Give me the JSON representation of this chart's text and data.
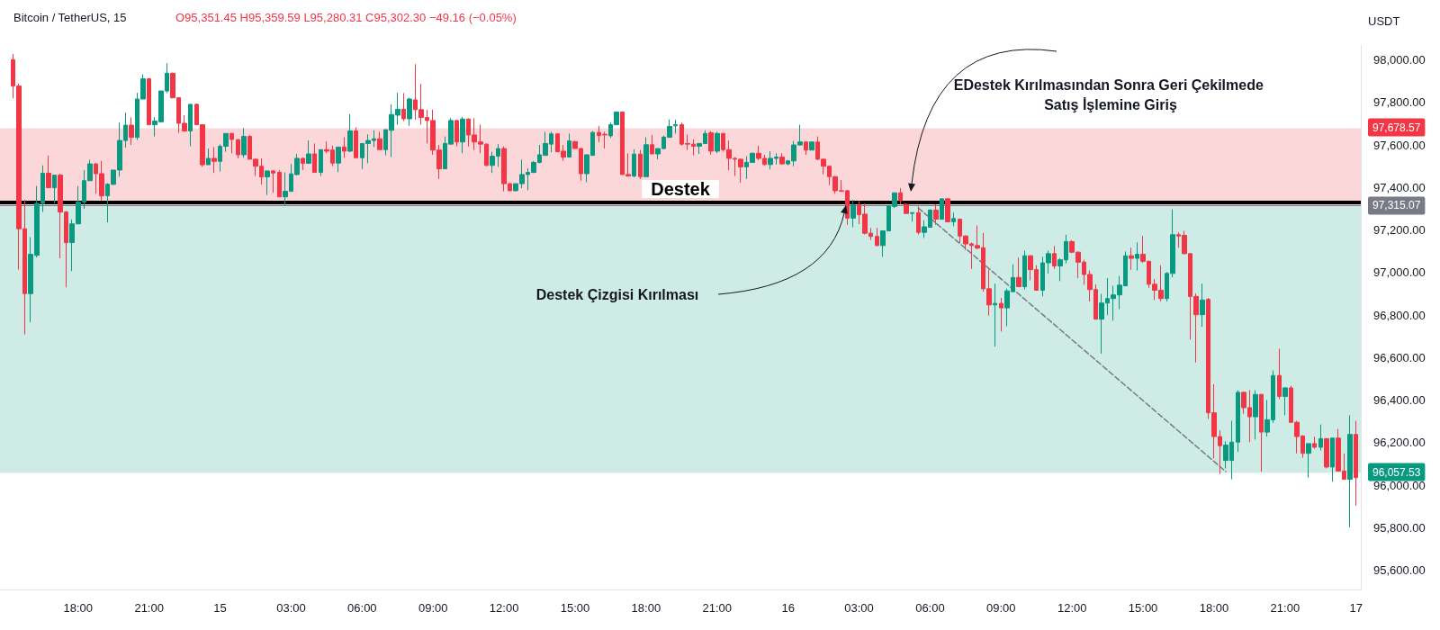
{
  "chart_data": {
    "type": "candlestick",
    "title": "Bitcoin / TetherUS, 15",
    "subtitle": "O95,351.45 H95,359.59 L95,280.31 C95,302.30 −49.16 (−0.05%)",
    "ylabel": "USDT",
    "x": [
      "--02-14T15:15",
      "--02-14T15:30",
      "--02-14T15:45",
      "--02-14T16:00",
      "--02-14T16:15",
      "--02-14T16:30",
      "--02-14T16:45",
      "--02-14T17:00",
      "--02-14T17:15",
      "--02-14T17:30",
      "--02-14T17:45",
      "--02-14T18:00",
      "--02-14T18:15",
      "--02-14T18:30",
      "--02-14T18:45",
      "--02-14T19:00",
      "--02-14T19:15",
      "--02-14T19:30",
      "--02-14T19:45",
      "--02-14T20:00",
      "--02-14T20:15",
      "--02-14T20:30",
      "--02-14T20:45",
      "--02-14T21:00",
      "--02-14T21:15",
      "--02-14T21:30",
      "--02-14T21:45",
      "--02-14T22:00",
      "--02-14T22:15",
      "--02-14T22:30",
      "--02-14T22:45",
      "--02-14T23:00",
      "--02-14T23:15",
      "--02-14T23:30",
      "--02-14T23:45",
      "--02-15T00:00",
      "--02-15T00:15",
      "--02-15T00:30",
      "--02-15T00:45",
      "--02-15T01:00",
      "--02-15T01:15",
      "--02-15T01:30",
      "--02-15T01:45",
      "--02-15T02:00",
      "--02-15T02:15",
      "--02-15T02:30",
      "--02-15T02:45",
      "--02-15T03:00",
      "--02-15T03:15",
      "--02-15T03:30",
      "--02-15T03:45",
      "--02-15T04:00",
      "--02-15T04:15",
      "--02-15T04:30",
      "--02-15T04:45",
      "--02-15T05:00",
      "--02-15T05:15",
      "--02-15T05:30",
      "--02-15T05:45",
      "--02-15T06:00",
      "--02-15T06:15",
      "--02-15T06:30",
      "--02-15T06:45",
      "--02-15T07:00",
      "--02-15T07:15",
      "--02-15T07:30",
      "--02-15T07:45",
      "--02-15T08:00",
      "--02-15T08:15",
      "--02-15T08:30",
      "--02-15T08:45",
      "--02-15T09:00",
      "--02-15T09:15",
      "--02-15T09:30",
      "--02-15T09:45",
      "--02-15T10:00",
      "--02-15T10:15",
      "--02-15T10:30",
      "--02-15T10:45",
      "--02-15T11:00",
      "--02-15T11:15",
      "--02-15T11:30",
      "--02-15T11:45",
      "--02-15T12:00",
      "--02-15T12:15",
      "--02-15T12:30",
      "--02-15T12:45",
      "--02-15T13:00",
      "--02-15T13:15",
      "--02-15T13:30",
      "--02-15T13:45",
      "--02-15T14:00",
      "--02-15T14:15",
      "--02-15T14:30",
      "--02-15T14:45",
      "--02-15T15:00",
      "--02-15T15:15",
      "--02-15T15:30",
      "--02-15T15:45",
      "--02-15T16:00",
      "--02-15T16:15",
      "--02-15T16:30",
      "--02-15T16:45",
      "--02-15T17:00",
      "--02-15T17:15",
      "--02-15T17:30",
      "--02-15T17:45",
      "--02-15T18:00",
      "--02-15T18:15",
      "--02-15T18:30",
      "--02-15T18:45",
      "--02-15T19:00",
      "--02-15T19:15",
      "--02-15T19:30",
      "--02-15T19:45",
      "--02-15T20:00",
      "--02-15T20:15",
      "--02-15T20:30",
      "--02-15T20:45",
      "--02-15T21:00",
      "--02-15T21:15",
      "--02-15T21:30",
      "--02-15T21:45",
      "--02-15T22:00",
      "--02-15T22:15",
      "--02-15T22:30",
      "--02-15T22:45",
      "--02-15T23:00",
      "--02-15T23:15",
      "--02-15T23:30",
      "--02-15T23:45",
      "--02-16T00:00",
      "--02-16T00:15",
      "--02-16T00:30",
      "--02-16T00:45",
      "--02-16T01:00",
      "--02-16T01:15",
      "--02-16T01:30",
      "--02-16T01:45",
      "--02-16T02:00",
      "--02-16T02:15",
      "--02-16T02:30",
      "--02-16T02:45",
      "--02-16T03:00",
      "--02-16T03:15",
      "--02-16T03:30",
      "--02-16T03:45",
      "--02-16T04:00",
      "--02-16T04:15",
      "--02-16T04:30",
      "--02-16T04:45",
      "--02-16T05:00",
      "--02-16T05:15",
      "--02-16T05:30",
      "--02-16T05:45",
      "--02-16T06:00",
      "--02-16T06:15",
      "--02-16T06:30",
      "--02-16T06:45",
      "--02-16T07:00",
      "--02-16T07:15",
      "--02-16T07:30",
      "--02-16T07:45",
      "--02-16T08:00",
      "--02-16T08:15",
      "--02-16T08:30",
      "--02-16T08:45",
      "--02-16T09:00",
      "--02-16T09:15",
      "--02-16T09:30",
      "--02-16T09:45",
      "--02-16T10:00",
      "--02-16T10:15",
      "--02-16T10:30",
      "--02-16T10:45",
      "--02-16T11:00",
      "--02-16T11:15",
      "--02-16T11:30",
      "--02-16T11:45",
      "--02-16T12:00",
      "--02-16T12:15",
      "--02-16T12:30",
      "--02-16T12:45",
      "--02-16T13:00",
      "--02-16T13:15",
      "--02-16T13:30",
      "--02-16T13:45",
      "--02-16T14:00",
      "--02-16T14:15",
      "--02-16T14:30",
      "--02-16T14:45",
      "--02-16T15:00",
      "--02-16T15:15",
      "--02-16T15:30",
      "--02-16T15:45",
      "--02-16T16:00",
      "--02-16T16:15",
      "--02-16T16:30",
      "--02-16T16:45",
      "--02-16T17:00",
      "--02-16T17:15",
      "--02-16T17:30",
      "--02-16T17:45",
      "--02-16T18:00",
      "--02-16T18:15",
      "--02-16T18:30",
      "--02-16T18:45",
      "--02-16T19:00",
      "--02-16T19:15",
      "--02-16T19:30",
      "--02-16T19:45",
      "--02-16T20:00",
      "--02-16T20:15",
      "--02-16T20:30",
      "--02-16T20:45",
      "--02-16T21:00",
      "--02-16T21:15",
      "--02-16T21:30",
      "--02-16T21:45",
      "--02-16T22:00",
      "--02-16T22:15",
      "--02-16T22:30",
      "--02-16T22:45",
      "--02-16T23:00",
      "--02-16T23:15",
      "--02-16T23:30",
      "--02-16T23:45",
      "--02-17T00:00"
    ],
    "ohlc": [
      [
        98001,
        98027,
        97819,
        97877
      ],
      [
        97877,
        97888,
        97014,
        97206
      ],
      [
        97206,
        97342,
        96709,
        96901
      ],
      [
        96901,
        97167,
        96766,
        97086
      ],
      [
        97081,
        97407,
        97071,
        97325
      ],
      [
        97325,
        97504,
        97285,
        97467
      ],
      [
        97467,
        97550,
        97397,
        97399
      ],
      [
        97399,
        97458,
        97325,
        97458
      ],
      [
        97458,
        97465,
        97067,
        97285
      ],
      [
        97285,
        97290,
        96931,
        97141
      ],
      [
        97141,
        97250,
        97007,
        97229
      ],
      [
        97229,
        97407,
        97229,
        97332
      ],
      [
        97332,
        97482,
        97300,
        97432
      ],
      [
        97432,
        97530,
        97432,
        97511
      ],
      [
        97511,
        97515,
        97371,
        97465
      ],
      [
        97465,
        97525,
        97339,
        97361
      ],
      [
        97361,
        97421,
        97236,
        97415
      ],
      [
        97415,
        97482,
        97411,
        97482
      ],
      [
        97482,
        97705,
        97451,
        97621
      ],
      [
        97621,
        97752,
        97587,
        97693
      ],
      [
        97693,
        97730,
        97600,
        97636
      ],
      [
        97636,
        97845,
        97623,
        97816
      ],
      [
        97816,
        97932,
        97816,
        97911
      ],
      [
        97911,
        97915,
        97695,
        97695
      ],
      [
        97695,
        97730,
        97640,
        97712
      ],
      [
        97709,
        97854,
        97709,
        97854
      ],
      [
        97854,
        97984,
        97844,
        97937
      ],
      [
        97937,
        97940,
        97819,
        97822
      ],
      [
        97822,
        97825,
        97657,
        97702
      ],
      [
        97702,
        97740,
        97662,
        97666
      ],
      [
        97666,
        97791,
        97594,
        97791
      ],
      [
        97791,
        97795,
        97695,
        97695
      ],
      [
        97695,
        97698,
        97497,
        97507
      ],
      [
        97507,
        97583,
        97507,
        97537
      ],
      [
        97537,
        97590,
        97468,
        97523
      ],
      [
        97523,
        97603,
        97475,
        97594
      ],
      [
        97594,
        97654,
        97568,
        97654
      ],
      [
        97654,
        97657,
        97561,
        97626
      ],
      [
        97625,
        97628,
        97537,
        97554
      ],
      [
        97554,
        97679,
        97540,
        97640
      ],
      [
        97640,
        97647,
        97533,
        97533
      ],
      [
        97533,
        97536,
        97454,
        97500
      ],
      [
        97500,
        97537,
        97414,
        97450
      ],
      [
        97450,
        97478,
        97365,
        97478
      ],
      [
        97478,
        97482,
        97375,
        97468
      ],
      [
        97471,
        97482,
        97356,
        97356
      ],
      [
        97356,
        97471,
        97315,
        97382
      ],
      [
        97382,
        97511,
        97382,
        97464
      ],
      [
        97461,
        97558,
        97457,
        97537
      ],
      [
        97537,
        97540,
        97482,
        97514
      ],
      [
        97514,
        97621,
        97511,
        97558
      ],
      [
        97558,
        97607,
        97471,
        97471
      ],
      [
        97471,
        97578,
        97454,
        97578
      ],
      [
        97578,
        97617,
        97561,
        97571
      ],
      [
        97576,
        97597,
        97501,
        97515
      ],
      [
        97515,
        97590,
        97472,
        97590
      ],
      [
        97590,
        97636,
        97540,
        97571
      ],
      [
        97571,
        97745,
        97566,
        97666
      ],
      [
        97666,
        97683,
        97540,
        97540
      ],
      [
        97540,
        97607,
        97487,
        97607
      ],
      [
        97607,
        97650,
        97514,
        97621
      ],
      [
        97621,
        97669,
        97590,
        97629
      ],
      [
        97629,
        97662,
        97578,
        97578
      ],
      [
        97578,
        97672,
        97551,
        97672
      ],
      [
        97669,
        97791,
        97543,
        97743
      ],
      [
        97740,
        97845,
        97695,
        97768
      ],
      [
        97768,
        97844,
        97712,
        97723
      ],
      [
        97723,
        97822,
        97690,
        97816
      ],
      [
        97812,
        97980,
        97719,
        97766
      ],
      [
        97766,
        97887,
        97695,
        97729
      ],
      [
        97729,
        97765,
        97607,
        97715
      ],
      [
        97715,
        97766,
        97554,
        97576
      ],
      [
        97576,
        97600,
        97440,
        97488
      ],
      [
        97488,
        97640,
        97488,
        97607
      ],
      [
        97604,
        97726,
        97604,
        97715
      ],
      [
        97715,
        97718,
        97593,
        97614
      ],
      [
        97614,
        97732,
        97561,
        97722
      ],
      [
        97722,
        97725,
        97593,
        97647
      ],
      [
        97647,
        97726,
        97576,
        97614
      ],
      [
        97614,
        97695,
        97561,
        97604
      ],
      [
        97604,
        97607,
        97500,
        97504
      ],
      [
        97504,
        97568,
        97468,
        97547
      ],
      [
        97547,
        97604,
        97497,
        97583
      ],
      [
        97583,
        97593,
        97382,
        97418
      ],
      [
        97418,
        97421,
        97382,
        97385
      ],
      [
        97385,
        97418,
        97382,
        97418
      ],
      [
        97418,
        97531,
        97397,
        97461
      ],
      [
        97461,
        97490,
        97387,
        97471
      ],
      [
        97471,
        97525,
        97468,
        97518
      ],
      [
        97518,
        97600,
        97514,
        97554
      ],
      [
        97551,
        97662,
        97551,
        97607
      ],
      [
        97604,
        97662,
        97566,
        97652
      ],
      [
        97652,
        97655,
        97566,
        97568
      ],
      [
        97571,
        97600,
        97525,
        97543
      ],
      [
        97543,
        97654,
        97543,
        97619
      ],
      [
        97616,
        97619,
        97583,
        97583
      ],
      [
        97583,
        97586,
        97432,
        97465
      ],
      [
        97465,
        97554,
        97425,
        97554
      ],
      [
        97551,
        97665,
        97551,
        97659
      ],
      [
        97659,
        97690,
        97612,
        97644
      ],
      [
        97650,
        97662,
        97583,
        97647
      ],
      [
        97643,
        97705,
        97633,
        97695
      ],
      [
        97695,
        97758,
        97695,
        97755
      ],
      [
        97755,
        97758,
        97461,
        97461
      ],
      [
        97461,
        97561,
        97451,
        97454
      ],
      [
        97454,
        97580,
        97447,
        97557
      ],
      [
        97557,
        97576,
        97440,
        97451
      ],
      [
        97451,
        97636,
        97451,
        97601
      ],
      [
        97601,
        97647,
        97558,
        97558
      ],
      [
        97558,
        97583,
        97533,
        97583
      ],
      [
        97583,
        97644,
        97580,
        97637
      ],
      [
        97636,
        97719,
        97636,
        97687
      ],
      [
        97690,
        97719,
        97654,
        97695
      ],
      [
        97695,
        97705,
        97597,
        97604
      ],
      [
        97607,
        97650,
        97576,
        97604
      ],
      [
        97604,
        97626,
        97551,
        97594
      ],
      [
        97594,
        97607,
        97558,
        97607
      ],
      [
        97607,
        97669,
        97604,
        97654
      ],
      [
        97657,
        97666,
        97554,
        97571
      ],
      [
        97571,
        97662,
        97561,
        97654
      ],
      [
        97654,
        97657,
        97568,
        97578
      ],
      [
        97578,
        97621,
        97482,
        97537
      ],
      [
        97537,
        97543,
        97454,
        97533
      ],
      [
        97533,
        97536,
        97422,
        97497
      ],
      [
        97497,
        97547,
        97440,
        97518
      ],
      [
        97518,
        97564,
        97518,
        97561
      ],
      [
        97561,
        97597,
        97528,
        97537
      ],
      [
        97537,
        97554,
        97504,
        97508
      ],
      [
        97508,
        97571,
        97485,
        97537
      ],
      [
        97537,
        97561,
        97508,
        97543
      ],
      [
        97543,
        97561,
        97507,
        97511
      ],
      [
        97511,
        97530,
        97504,
        97525
      ],
      [
        97525,
        97619,
        97500,
        97600
      ],
      [
        97600,
        97695,
        97597,
        97614
      ],
      [
        97614,
        97617,
        97554,
        97576
      ],
      [
        97576,
        97614,
        97576,
        97614
      ],
      [
        97614,
        97640,
        97528,
        97533
      ],
      [
        97533,
        97536,
        97461,
        97500
      ],
      [
        97500,
        97503,
        97411,
        97451
      ],
      [
        97451,
        97454,
        97371,
        97385
      ],
      [
        97385,
        97435,
        97382,
        97382
      ],
      [
        97385,
        97388,
        97225,
        97256
      ],
      [
        97256,
        97342,
        97213,
        97318
      ],
      [
        97318,
        97336,
        97228,
        97272
      ],
      [
        97275,
        97325,
        97179,
        97185
      ],
      [
        97185,
        97210,
        97153,
        97170
      ],
      [
        97170,
        97210,
        97124,
        97127
      ],
      [
        97127,
        97196,
        97074,
        97196
      ],
      [
        97196,
        97315,
        97196,
        97315
      ],
      [
        97311,
        97375,
        97304,
        97375
      ],
      [
        97375,
        97397,
        97321,
        97339
      ],
      [
        97321,
        97324,
        97275,
        97278
      ],
      [
        97278,
        97282,
        97239,
        97282
      ],
      [
        97282,
        97311,
        97179,
        97189
      ],
      [
        97189,
        97246,
        97163,
        97215
      ],
      [
        97213,
        97297,
        97211,
        97294
      ],
      [
        97294,
        97321,
        97225,
        97251
      ],
      [
        97251,
        97347,
        97251,
        97347
      ],
      [
        97347,
        97350,
        97239,
        97239
      ],
      [
        97239,
        97282,
        97218,
        97254
      ],
      [
        97251,
        97254,
        97139,
        97172
      ],
      [
        97172,
        97175,
        97106,
        97135
      ],
      [
        97135,
        97142,
        97017,
        97127
      ],
      [
        97127,
        97222,
        97110,
        97115
      ],
      [
        97117,
        97186,
        96910,
        96924
      ],
      [
        96924,
        97014,
        96798,
        96848
      ],
      [
        96848,
        96948,
        96652,
        96855
      ],
      [
        96855,
        96881,
        96723,
        96834
      ],
      [
        96834,
        96924,
        96748,
        96914
      ],
      [
        96910,
        97039,
        96910,
        96977
      ],
      [
        96977,
        97070,
        96931,
        96934
      ],
      [
        96934,
        97103,
        96921,
        97079
      ],
      [
        97079,
        97082,
        96963,
        97014
      ],
      [
        97014,
        97034,
        96917,
        96917
      ],
      [
        96917,
        97074,
        96888,
        97046
      ],
      [
        97046,
        97103,
        96996,
        97089
      ],
      [
        97089,
        97125,
        97017,
        97031
      ],
      [
        97031,
        97067,
        96960,
        97060
      ],
      [
        97060,
        97178,
        97043,
        97146
      ],
      [
        97146,
        97153,
        97092,
        97096
      ],
      [
        97096,
        97099,
        96974,
        97049
      ],
      [
        97049,
        97060,
        96943,
        96991
      ],
      [
        96991,
        97010,
        96864,
        96920
      ],
      [
        96920,
        96945,
        96781,
        96781
      ],
      [
        96781,
        96900,
        96619,
        96857
      ],
      [
        96857,
        96974,
        96799,
        96878
      ],
      [
        96878,
        96938,
        96774,
        96895
      ],
      [
        96895,
        96984,
        96828,
        96941
      ],
      [
        96938,
        97099,
        96935,
        97079
      ],
      [
        97079,
        97117,
        97013,
        97067
      ],
      [
        97067,
        97142,
        97010,
        97086
      ],
      [
        97086,
        97172,
        97046,
        97053
      ],
      [
        97053,
        97056,
        96928,
        96945
      ],
      [
        96945,
        96970,
        96871,
        96917
      ],
      [
        96917,
        97034,
        96864,
        96878
      ],
      [
        96878,
        97003,
        96864,
        96996
      ],
      [
        96996,
        97297,
        96978,
        97178
      ],
      [
        97178,
        97189,
        97117,
        97172
      ],
      [
        97175,
        97196,
        97086,
        97089
      ],
      [
        97089,
        97092,
        96685,
        96888
      ],
      [
        96888,
        96902,
        96577,
        96802
      ],
      [
        96802,
        96948,
        96745,
        96871
      ],
      [
        96874,
        96881,
        96312,
        96341
      ],
      [
        96341,
        96475,
        96126,
        96229
      ],
      [
        96229,
        96258,
        96054,
        96186
      ],
      [
        96117,
        96207,
        96079,
        96189
      ],
      [
        96117,
        96303,
        96028,
        96203
      ],
      [
        96203,
        96447,
        96157,
        96437
      ],
      [
        96437,
        96440,
        96336,
        96365
      ],
      [
        96365,
        96447,
        96203,
        96322
      ],
      [
        96322,
        96447,
        96215,
        96427
      ],
      [
        96427,
        96430,
        96064,
        96250
      ],
      [
        96250,
        96401,
        96229,
        96308
      ],
      [
        96308,
        96540,
        96293,
        96516
      ],
      [
        96516,
        96642,
        96405,
        96418
      ],
      [
        96418,
        96461,
        96329,
        96458
      ],
      [
        96458,
        96468,
        96293,
        96296
      ],
      [
        96296,
        96303,
        96150,
        96229
      ],
      [
        96232,
        96235,
        96129,
        96150
      ],
      [
        96150,
        96196,
        96036,
        96196
      ],
      [
        96196,
        96229,
        96172,
        96179
      ],
      [
        96179,
        96286,
        96164,
        96219
      ],
      [
        96219,
        96222,
        96079,
        96086
      ],
      [
        96086,
        96222,
        96017,
        96222
      ],
      [
        96222,
        96265,
        96064,
        96067
      ],
      [
        96067,
        96150,
        96028,
        96028
      ],
      [
        96028,
        96329,
        95802,
        96239
      ],
      [
        96239,
        96303,
        95904,
        96036
      ]
    ],
    "series": [
      {
        "type": "line",
        "x": [
          "--02-16T05:30",
          "--02-16T18:30"
        ],
        "values": [
          97304,
          96064
        ],
        "color": "#787b86",
        "line_style": "dashed",
        "marker": "none"
      }
    ],
    "xlim": [
      "--02-14T14:42",
      "--02-17T00:12"
    ],
    "xticks": [
      {
        "value": "--02-14T18:00",
        "label": "18:00"
      },
      {
        "value": "--02-14T21:00",
        "label": "21:00"
      },
      {
        "value": "--02-15T00:00",
        "label": "15"
      },
      {
        "value": "--02-15T03:00",
        "label": "03:00"
      },
      {
        "value": "--02-15T06:00",
        "label": "06:00"
      },
      {
        "value": "--02-15T09:00",
        "label": "09:00"
      },
      {
        "value": "--02-15T12:00",
        "label": "12:00"
      },
      {
        "value": "--02-15T15:00",
        "label": "15:00"
      },
      {
        "value": "--02-15T18:00",
        "label": "18:00"
      },
      {
        "value": "--02-15T21:00",
        "label": "21:00"
      },
      {
        "value": "--02-16T00:00",
        "label": "16"
      },
      {
        "value": "--02-16T03:00",
        "label": "03:00"
      },
      {
        "value": "--02-16T06:00",
        "label": "06:00"
      },
      {
        "value": "--02-16T09:00",
        "label": "09:00"
      },
      {
        "value": "--02-16T12:00",
        "label": "12:00"
      },
      {
        "value": "--02-16T15:00",
        "label": "15:00"
      },
      {
        "value": "--02-16T18:00",
        "label": "18:00"
      },
      {
        "value": "--02-16T21:00",
        "label": "21:00"
      },
      {
        "value": "--02-17T00:00",
        "label": "17"
      }
    ],
    "ylim": [
      95510,
      98070
    ],
    "yticks": [
      {
        "value": 95600,
        "label": "95,600.00"
      },
      {
        "value": 95800,
        "label": "95,800.00"
      },
      {
        "value": 96000,
        "label": "96,000.00"
      },
      {
        "value": 96200,
        "label": "96,200.00"
      },
      {
        "value": 96400,
        "label": "96,400.00"
      },
      {
        "value": 96600,
        "label": "96,600.00"
      },
      {
        "value": 96800,
        "label": "96,800.00"
      },
      {
        "value": 97000,
        "label": "97,000.00"
      },
      {
        "value": 97200,
        "label": "97,200.00"
      },
      {
        "value": 97400,
        "label": "97,400.00"
      },
      {
        "value": 97600,
        "label": "97,600.00"
      },
      {
        "value": 97800,
        "label": "97,800.00"
      },
      {
        "value": 98000,
        "label": "98,000.00"
      }
    ],
    "bands": [
      {
        "axis": "y",
        "from": 97315.07,
        "to": 97678.57,
        "label": "97,678.57",
        "color": "#f23645"
      },
      {
        "axis": "y",
        "from": 97315.07,
        "to": 96057.53,
        "label": "96,057.53",
        "color": "#089981"
      }
    ],
    "ref_lines": [
      {
        "axis": "y",
        "value": 97315.07,
        "label": "97,315.07",
        "color": "#787b86"
      },
      {
        "axis": "y",
        "value": 97330,
        "label": "Destek",
        "color": "#000000",
        "line_style": "solid"
      }
    ],
    "annotations": [
      "EDestek Kırılmasından Sonra Geri Çekilmede Satış İşlemine Giriş",
      "Destek Çizgisi Kırılması"
    ],
    "grid": false
  }
}
